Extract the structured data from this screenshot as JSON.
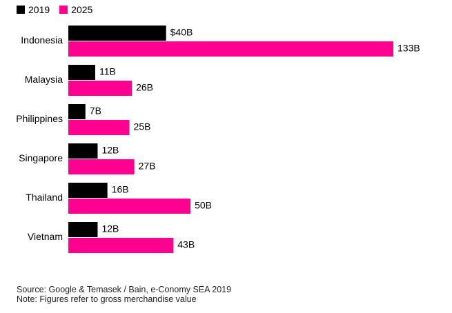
{
  "chart_data": {
    "type": "bar",
    "orientation": "horizontal",
    "categories": [
      "Indonesia",
      "Malaysia",
      "Philippines",
      "Singapore",
      "Thailand",
      "Vietnam"
    ],
    "series": [
      {
        "name": "2019",
        "color": "#000000",
        "values": [
          40,
          11,
          7,
          12,
          16,
          12
        ],
        "labels": [
          "$40B",
          "11B",
          "7B",
          "12B",
          "16B",
          "12B"
        ]
      },
      {
        "name": "2025",
        "color": "#ff0090",
        "values": [
          133,
          26,
          25,
          27,
          50,
          43
        ],
        "labels": [
          "133B",
          "26B",
          "25B",
          "27B",
          "50B",
          "43B"
        ]
      }
    ],
    "xlim": [
      0,
      133
    ],
    "grid": false,
    "legend_position": "top-left"
  },
  "footer": {
    "source": "Source: Google & Temasek / Bain, e-Conomy SEA 2019",
    "note": "Note: Figures refer to gross merchandise value"
  }
}
